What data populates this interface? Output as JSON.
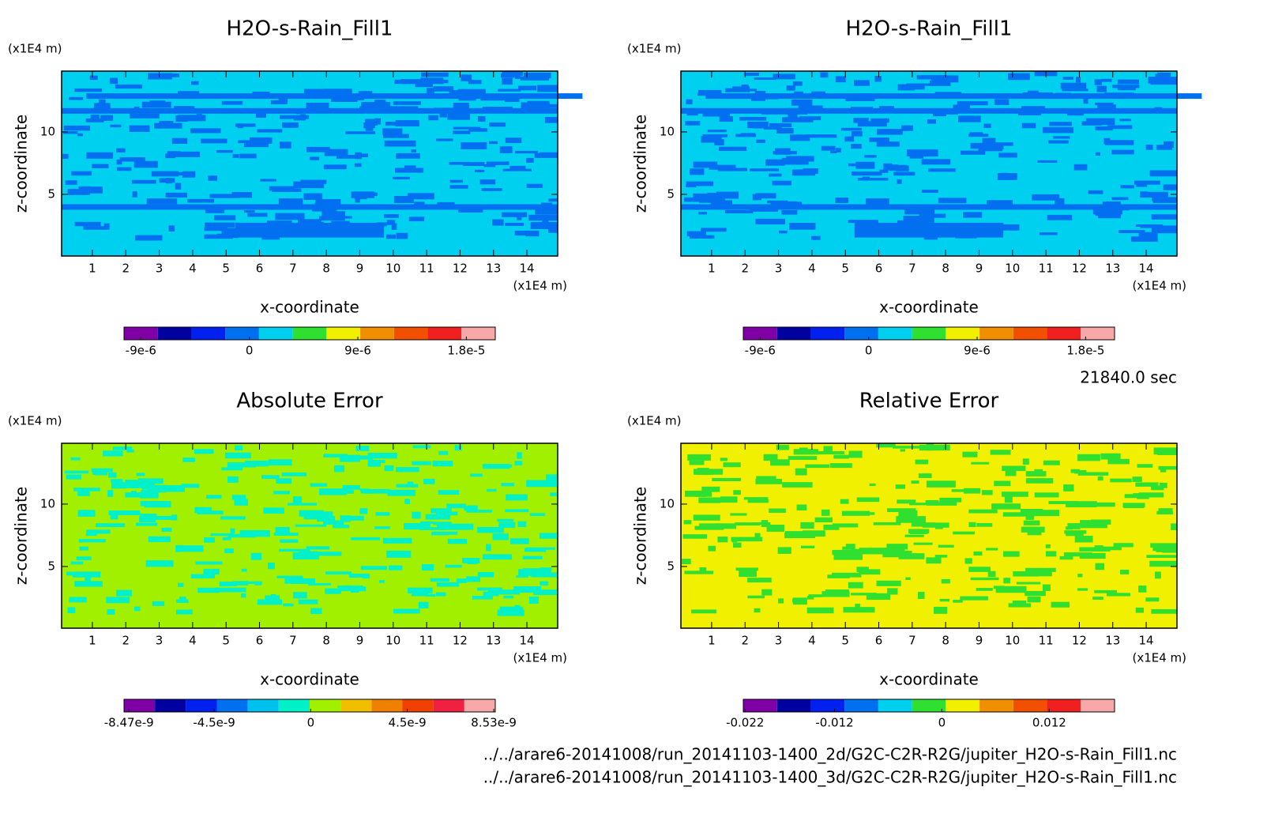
{
  "chart_data": [
    {
      "type": "contour",
      "title": "H2O-s-Rain_Fill1",
      "x_label": "x-coordinate",
      "y_label": "z-coordinate",
      "x_unit": "(x1E4 m)",
      "y_unit": "(x1E4 m)",
      "xlim": [
        0.08,
        14.92
      ],
      "xticks": [
        1,
        2,
        3,
        4,
        5,
        6,
        7,
        8,
        9,
        10,
        11,
        12,
        13,
        14
      ],
      "ylim": [
        0.06,
        14.87
      ],
      "yticks": [
        5,
        10
      ],
      "field_colors": [
        "#00d0f0",
        "#0070f0"
      ],
      "colorbar": {
        "clim": [
          -1.04e-05,
          2.04e-05
        ],
        "colors": [
          "#8000a8",
          "#0000a0",
          "#0020f0",
          "#0070f0",
          "#00d0f0",
          "#30e030",
          "#f0f000",
          "#f09000",
          "#f05000",
          "#f02020",
          "#f8a8a8"
        ],
        "ticks": [
          {
            "value": -9e-06,
            "label": "-9e-6"
          },
          0,
          {
            "value": 9e-06,
            "label": "9e-6"
          },
          {
            "value": 1.8e-05,
            "label": "1.8e-5"
          }
        ]
      }
    },
    {
      "type": "contour",
      "title": "H2O-s-Rain_Fill1",
      "x_label": "x-coordinate",
      "y_label": "z-coordinate",
      "x_unit": "(x1E4 m)",
      "y_unit": "(x1E4 m)",
      "xlim": [
        0.08,
        14.92
      ],
      "xticks": [
        1,
        2,
        3,
        4,
        5,
        6,
        7,
        8,
        9,
        10,
        11,
        12,
        13,
        14
      ],
      "ylim": [
        0.06,
        14.87
      ],
      "yticks": [
        5,
        10
      ],
      "field_colors": [
        "#00d0f0",
        "#0070f0"
      ],
      "colorbar": {
        "clim": [
          -1.04e-05,
          2.04e-05
        ],
        "colors": [
          "#8000a8",
          "#0000a0",
          "#0020f0",
          "#0070f0",
          "#00d0f0",
          "#30e030",
          "#f0f000",
          "#f09000",
          "#f05000",
          "#f02020",
          "#f8a8a8"
        ],
        "ticks": [
          {
            "value": -9e-06,
            "label": "-9e-6"
          },
          0,
          {
            "value": 9e-06,
            "label": "9e-6"
          },
          {
            "value": 1.8e-05,
            "label": "1.8e-5"
          }
        ]
      }
    },
    {
      "type": "contour",
      "title": "Absolute Error",
      "x_label": "x-coordinate",
      "y_label": "z-coordinate",
      "x_unit": "(x1E4 m)",
      "y_unit": "(x1E4 m)",
      "xlim": [
        0.08,
        14.92
      ],
      "xticks": [
        1,
        2,
        3,
        4,
        5,
        6,
        7,
        8,
        9,
        10,
        11,
        12,
        13,
        14
      ],
      "ylim": [
        0.06,
        14.87
      ],
      "yticks": [
        5,
        10
      ],
      "field_colors": [
        "#a0f000",
        "#00f0c8"
      ],
      "colorbar": {
        "clim": [
          -8.7e-09,
          8.6e-09
        ],
        "colors": [
          "#8000a8",
          "#0000a0",
          "#0020f0",
          "#0070f0",
          "#00c0f0",
          "#00f0c8",
          "#a0f000",
          "#f0c000",
          "#f08000",
          "#f04000",
          "#f02040",
          "#f8a8a8"
        ],
        "ticks": [
          {
            "value": -8.47e-09,
            "label": "-8.47e-9"
          },
          {
            "value": -4.5e-09,
            "label": "-4.5e-9"
          },
          0,
          {
            "value": 4.5e-09,
            "label": "4.5e-9"
          },
          {
            "value": 8.53e-09,
            "label": "8.53e-9"
          }
        ]
      }
    },
    {
      "type": "contour",
      "title": "Relative Error",
      "x_label": "x-coordinate",
      "y_label": "z-coordinate",
      "x_unit": "(x1E4 m)",
      "y_unit": "(x1E4 m)",
      "xlim": [
        0.08,
        14.92
      ],
      "xticks": [
        1,
        2,
        3,
        4,
        5,
        6,
        7,
        8,
        9,
        10,
        11,
        12,
        13,
        14
      ],
      "ylim": [
        0.06,
        14.87
      ],
      "yticks": [
        5,
        10
      ],
      "field_colors": [
        "#f0f000",
        "#30e030"
      ],
      "colorbar": {
        "clim": [
          -0.0222,
          0.0193
        ],
        "colors": [
          "#8000a8",
          "#0000a0",
          "#0020f0",
          "#0070f0",
          "#00d0f0",
          "#30e030",
          "#f0f000",
          "#f09000",
          "#f05000",
          "#f02020",
          "#f8a8a8"
        ],
        "ticks": [
          -0.022,
          -0.012,
          0,
          0.012
        ]
      }
    }
  ],
  "time_label": "21840.0 sec",
  "files": [
    "../../arare6-20141008/run_20141103-1400_2d/G2C-C2R-R2G/jupiter_H2O-s-Rain_Fill1.nc",
    "../../arare6-20141008/run_20141103-1400_3d/G2C-C2R-R2G/jupiter_H2O-s-Rain_Fill1.nc"
  ]
}
